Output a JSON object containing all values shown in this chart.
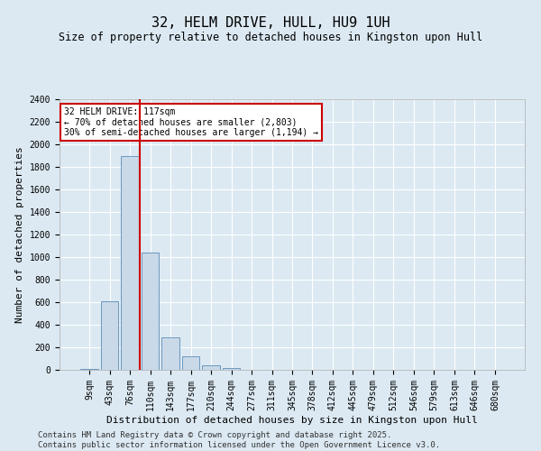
{
  "title": "32, HELM DRIVE, HULL, HU9 1UH",
  "subtitle": "Size of property relative to detached houses in Kingston upon Hull",
  "xlabel": "Distribution of detached houses by size in Kingston upon Hull",
  "ylabel": "Number of detached properties",
  "categories": [
    "9sqm",
    "43sqm",
    "76sqm",
    "110sqm",
    "143sqm",
    "177sqm",
    "210sqm",
    "244sqm",
    "277sqm",
    "311sqm",
    "345sqm",
    "378sqm",
    "412sqm",
    "445sqm",
    "479sqm",
    "512sqm",
    "546sqm",
    "579sqm",
    "613sqm",
    "646sqm",
    "680sqm"
  ],
  "values": [
    10,
    610,
    1900,
    1040,
    290,
    120,
    42,
    18,
    0,
    0,
    0,
    0,
    0,
    0,
    0,
    0,
    0,
    0,
    0,
    0,
    0
  ],
  "bar_color": "#c9d9e8",
  "bar_edge_color": "#5b8db8",
  "vline_color": "#cc0000",
  "annotation_text": "32 HELM DRIVE: 117sqm\n← 70% of detached houses are smaller (2,803)\n30% of semi-detached houses are larger (1,194) →",
  "annotation_box_color": "#ffffff",
  "annotation_box_edge": "#cc0000",
  "ylim": [
    0,
    2400
  ],
  "yticks": [
    0,
    200,
    400,
    600,
    800,
    1000,
    1200,
    1400,
    1600,
    1800,
    2000,
    2200,
    2400
  ],
  "background_color": "#dce9f2",
  "plot_bg_color": "#dce9f2",
  "grid_color": "#ffffff",
  "footer": "Contains HM Land Registry data © Crown copyright and database right 2025.\nContains public sector information licensed under the Open Government Licence v3.0.",
  "title_fontsize": 11,
  "subtitle_fontsize": 8.5,
  "xlabel_fontsize": 8,
  "ylabel_fontsize": 8,
  "tick_fontsize": 7,
  "footer_fontsize": 6.5
}
